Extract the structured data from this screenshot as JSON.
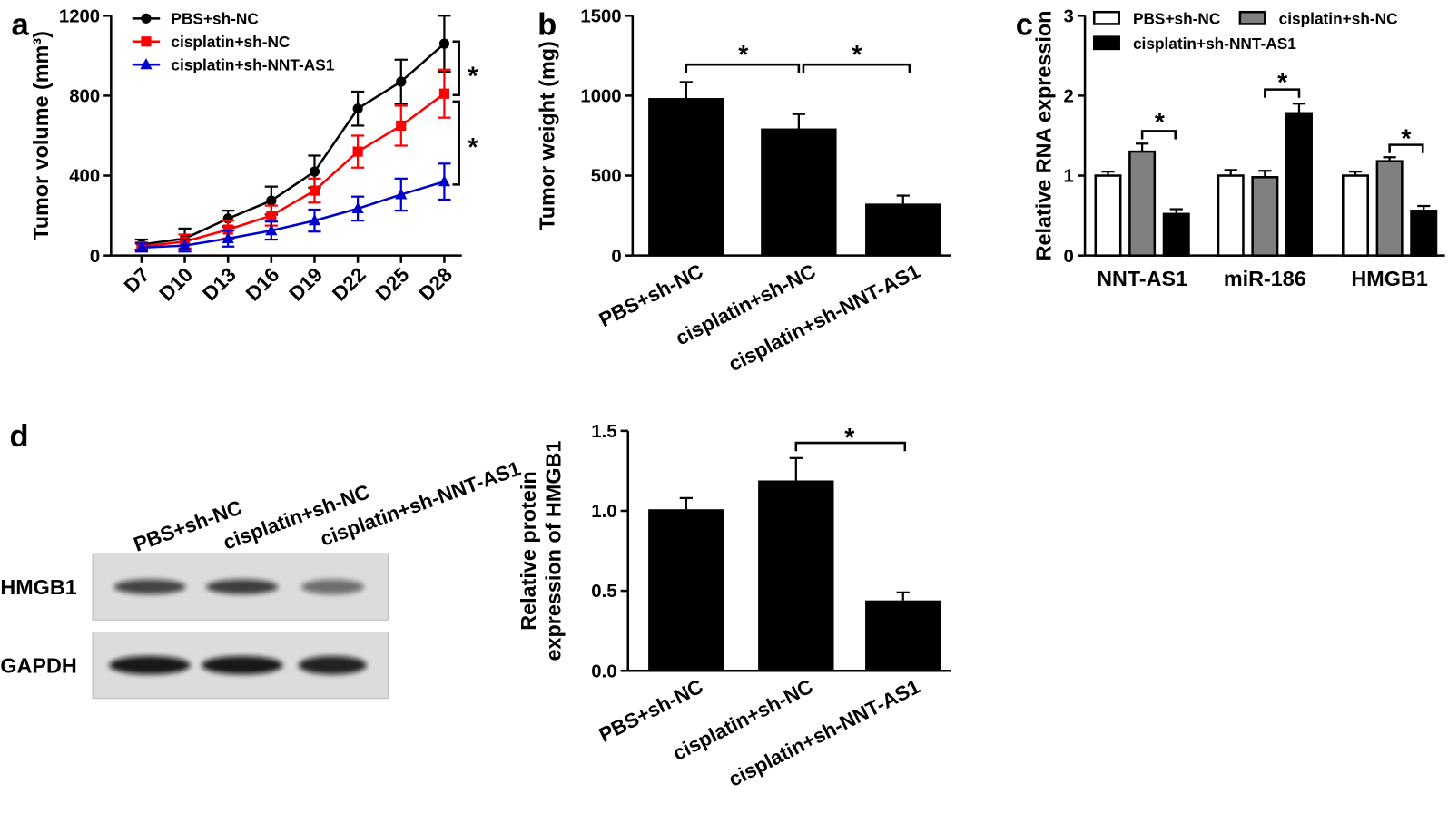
{
  "chart_data": [
    {
      "type": "line",
      "panel": "a",
      "y_label": "Tumor volume (mm³)",
      "categories": [
        "D7",
        "D10",
        "D13",
        "D16",
        "D19",
        "D22",
        "D25",
        "D28"
      ],
      "series": [
        {
          "name": "PBS+sh-NC",
          "color": "#000000",
          "marker": "circle",
          "values": [
            55,
            85,
            185,
            275,
            420,
            735,
            870,
            1060
          ],
          "errors": [
            25,
            50,
            40,
            70,
            80,
            85,
            110,
            140
          ]
        },
        {
          "name": "cisplatin+sh-NC",
          "color": "#ff0000",
          "marker": "square",
          "values": [
            45,
            70,
            130,
            200,
            325,
            520,
            650,
            810
          ],
          "errors": [
            20,
            35,
            45,
            50,
            60,
            80,
            100,
            120
          ]
        },
        {
          "name": "cisplatin+sh-NNT-AS1",
          "color": "#0000cc",
          "marker": "triangle",
          "values": [
            40,
            50,
            85,
            125,
            175,
            235,
            305,
            370
          ],
          "errors": [
            20,
            30,
            40,
            45,
            55,
            60,
            80,
            90
          ]
        }
      ],
      "ylim": [
        0,
        1200
      ],
      "yticks": [
        0,
        400,
        800,
        1200
      ],
      "annotations": [
        "*",
        "*"
      ]
    },
    {
      "type": "bar",
      "panel": "b",
      "y_label": "Tumor weight (mg)",
      "categories": [
        "PBS+sh-NC",
        "cisplatin+sh-NC",
        "cisplatin+sh-NNT-AS1"
      ],
      "values": [
        985,
        795,
        325
      ],
      "errors": [
        100,
        90,
        50
      ],
      "color": "#000000",
      "ylim": [
        0,
        1500
      ],
      "yticks": [
        0,
        500,
        1000,
        1500
      ],
      "annotations": [
        "*",
        "*"
      ]
    },
    {
      "type": "grouped_bar",
      "panel": "c",
      "y_label": "Relative RNA expression",
      "categories": [
        "NNT-AS1",
        "miR-186",
        "HMGB1"
      ],
      "series": [
        {
          "name": "PBS+sh-NC",
          "color": "#ffffff",
          "values": [
            1.0,
            1.0,
            1.0
          ],
          "errors": [
            0.05,
            0.07,
            0.05
          ]
        },
        {
          "name": "cisplatin+sh-NC",
          "color": "#808080",
          "values": [
            1.3,
            0.98,
            1.18
          ],
          "errors": [
            0.1,
            0.08,
            0.05
          ]
        },
        {
          "name": "cisplatin+sh-NNT-AS1",
          "color": "#000000",
          "values": [
            0.52,
            1.78,
            0.56
          ],
          "errors": [
            0.06,
            0.12,
            0.06
          ]
        }
      ],
      "ylim": [
        0,
        3
      ],
      "yticks": [
        0,
        1,
        2,
        3
      ],
      "annotations": [
        "*",
        "*",
        "*"
      ]
    },
    {
      "type": "blot",
      "panel": "d",
      "columns": [
        "PBS+sh-NC",
        "cisplatin+sh-NC",
        "cisplatin+sh-NNT-AS1"
      ],
      "rows": [
        "HMGB1",
        "GAPDH"
      ]
    },
    {
      "type": "bar",
      "y_label": [
        "Relative protein",
        "expression of HMGB1"
      ],
      "categories": [
        "PBS+sh-NC",
        "cisplatin+sh-NC",
        "cisplatin+sh-NNT-AS1"
      ],
      "values": [
        1.01,
        1.19,
        0.44
      ],
      "errors": [
        0.07,
        0.14,
        0.05
      ],
      "color": "#000000",
      "ylim": [
        0,
        1.5
      ],
      "yticks": [
        {
          "value": 0,
          "label": "0.0"
        },
        {
          "value": 0.5,
          "label": "0.5"
        },
        {
          "value": 1,
          "label": "1.0"
        },
        {
          "value": 1.5,
          "label": "1.5"
        }
      ],
      "annotations": [
        "*"
      ]
    }
  ]
}
